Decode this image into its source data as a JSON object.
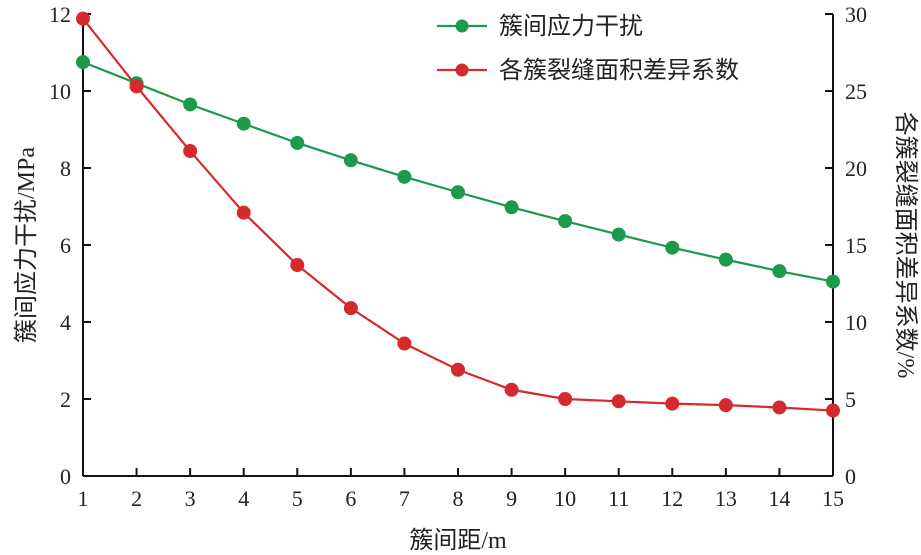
{
  "chart_data": {
    "type": "line",
    "x": [
      1,
      2,
      3,
      4,
      5,
      6,
      7,
      8,
      9,
      10,
      11,
      12,
      13,
      14,
      15
    ],
    "xlabel": "簇间距/m",
    "ylabel": "簇间应力干扰/MPa",
    "y2label": "各簇裂缝面积差异系数/%",
    "xlim": [
      1,
      15
    ],
    "ylim": [
      0,
      12
    ],
    "y2lim": [
      0,
      30
    ],
    "xticks": [
      "1",
      "2",
      "3",
      "4",
      "5",
      "6",
      "7",
      "8",
      "9",
      "10",
      "11",
      "12",
      "13",
      "14",
      "15"
    ],
    "yticks": [
      "0",
      "2",
      "4",
      "6",
      "8",
      "10",
      "12"
    ],
    "y2ticks": [
      "0",
      "5",
      "10",
      "15",
      "20",
      "25",
      "30"
    ],
    "grid": false,
    "legend_position": "top-right",
    "series": [
      {
        "name": "簇间应力干扰",
        "axis": "left",
        "color": "#1a9a4a",
        "values": [
          10.75,
          10.2,
          9.65,
          9.15,
          8.65,
          8.2,
          7.77,
          7.37,
          6.98,
          6.62,
          6.27,
          5.93,
          5.62,
          5.32,
          5.05
        ]
      },
      {
        "name": "各簇裂缝面积差异系数",
        "axis": "right",
        "color": "#d42a2e",
        "values": [
          29.7,
          25.3,
          21.1,
          17.1,
          13.7,
          10.9,
          8.6,
          6.9,
          5.6,
          5.0,
          4.85,
          4.7,
          4.6,
          4.45,
          4.25
        ]
      }
    ]
  }
}
